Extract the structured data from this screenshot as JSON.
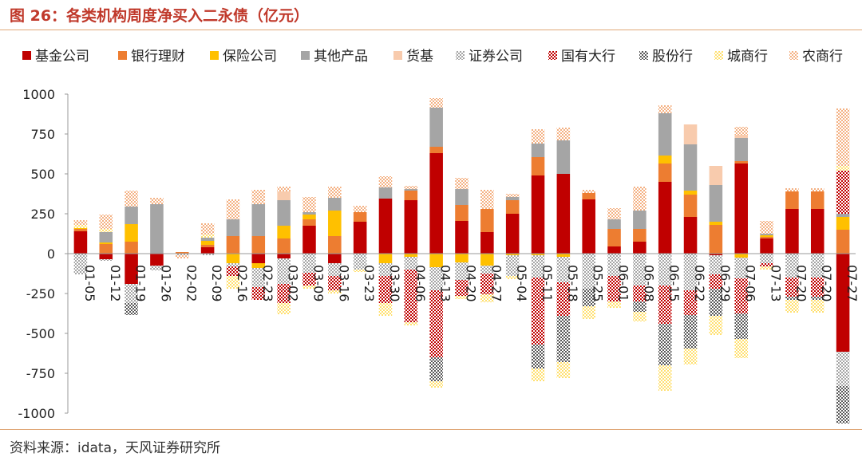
{
  "title": "图 26：各类机构周度净买入二永债（亿元）",
  "source": "资料来源：idata，天风证券研究所",
  "chart_data": {
    "type": "bar",
    "stacked": true,
    "title": "各类机构周度净买入二永债（亿元）",
    "xlabel": "",
    "ylabel": "",
    "ylim": [
      -1000,
      1000
    ],
    "yticks": [
      1000,
      750,
      500,
      250,
      0,
      -250,
      -500,
      -750,
      -1000
    ],
    "legend_position": "top",
    "grid": false,
    "categories": [
      "01-05",
      "01-12",
      "01-19",
      "01-26",
      "02-02",
      "02-09",
      "02-16",
      "02-23",
      "03-02",
      "03-09",
      "03-16",
      "03-23",
      "03-30",
      "04-06",
      "04-13",
      "04-20",
      "04-27",
      "05-04",
      "05-11",
      "05-18",
      "05-25",
      "06-01",
      "06-08",
      "06-15",
      "06-22",
      "06-29",
      "07-06",
      "07-13",
      "07-20",
      "07-20",
      "07-27"
    ],
    "series": [
      {
        "name": "基金公司",
        "color": "#c00000",
        "pattern": "solid",
        "values": [
          140,
          -35,
          -190,
          -75,
          0,
          40,
          0,
          -60,
          -30,
          175,
          -60,
          200,
          345,
          335,
          630,
          205,
          135,
          250,
          490,
          500,
          340,
          45,
          75,
          450,
          230,
          -10,
          565,
          95,
          280,
          280,
          -615
        ]
      },
      {
        "name": "银行理财",
        "color": "#ed7d31",
        "pattern": "solid",
        "values": [
          15,
          60,
          75,
          0,
          10,
          15,
          110,
          110,
          95,
          40,
          110,
          60,
          0,
          60,
          40,
          100,
          145,
          85,
          115,
          0,
          40,
          110,
          80,
          115,
          140,
          180,
          15,
          10,
          110,
          110,
          150
        ]
      },
      {
        "name": "保险公司",
        "color": "#ffc000",
        "pattern": "solid",
        "values": [
          5,
          10,
          110,
          0,
          0,
          25,
          -60,
          -30,
          80,
          30,
          160,
          0,
          -60,
          -20,
          -85,
          -55,
          -75,
          -10,
          -10,
          -20,
          0,
          0,
          0,
          50,
          25,
          20,
          -25,
          10,
          0,
          0,
          80
        ]
      },
      {
        "name": "其他产品",
        "color": "#a5a5a5",
        "pattern": "solid",
        "values": [
          0,
          65,
          110,
          310,
          0,
          20,
          105,
          200,
          160,
          15,
          80,
          0,
          70,
          10,
          245,
          100,
          0,
          20,
          85,
          210,
          0,
          60,
          115,
          265,
          290,
          230,
          145,
          10,
          0,
          0,
          20
        ]
      },
      {
        "name": "货基",
        "color": "#f8cbad",
        "pattern": "solid",
        "values": [
          0,
          0,
          0,
          0,
          0,
          0,
          0,
          0,
          55,
          0,
          0,
          0,
          0,
          0,
          0,
          0,
          0,
          0,
          0,
          0,
          0,
          0,
          0,
          0,
          125,
          120,
          20,
          0,
          0,
          0,
          0
        ]
      },
      {
        "name": "证券公司",
        "color": "#a5a5a5",
        "pattern": "check",
        "values": [
          -130,
          -10,
          -120,
          -30,
          -10,
          -10,
          -20,
          -120,
          -160,
          -120,
          -80,
          -100,
          -80,
          -80,
          -145,
          -110,
          -50,
          -130,
          -140,
          -160,
          -220,
          -140,
          -200,
          -200,
          -230,
          -120,
          -130,
          -60,
          -150,
          -150,
          -215
        ]
      },
      {
        "name": "国有大行",
        "color": "#c00000",
        "pattern": "check",
        "values": [
          0,
          0,
          0,
          0,
          0,
          0,
          -60,
          -80,
          -120,
          -80,
          -90,
          0,
          -170,
          -330,
          -420,
          -100,
          -130,
          0,
          -420,
          -210,
          0,
          -160,
          -100,
          -240,
          -155,
          -90,
          -220,
          -20,
          -120,
          -120,
          270
        ]
      },
      {
        "name": "股份行",
        "color": "#595959",
        "pattern": "check",
        "values": [
          0,
          0,
          -75,
          0,
          0,
          0,
          0,
          0,
          0,
          0,
          0,
          0,
          0,
          0,
          -150,
          0,
          0,
          0,
          -150,
          -290,
          -110,
          0,
          -65,
          -260,
          -210,
          -170,
          -160,
          0,
          -20,
          -20,
          -235
        ]
      },
      {
        "name": "城商行",
        "color": "#ffe070",
        "pattern": "check",
        "values": [
          20,
          20,
          0,
          0,
          0,
          20,
          -80,
          0,
          -70,
          -20,
          -20,
          -15,
          -80,
          -20,
          -40,
          -20,
          -50,
          -20,
          -80,
          -100,
          -80,
          -40,
          -60,
          -160,
          -100,
          -120,
          -120,
          -20,
          -80,
          -80,
          30
        ]
      },
      {
        "name": "农商行",
        "color": "#f4b183",
        "pattern": "check",
        "values": [
          30,
          90,
          100,
          40,
          -20,
          70,
          125,
          90,
          30,
          95,
          70,
          40,
          70,
          20,
          60,
          70,
          120,
          20,
          90,
          80,
          20,
          70,
          150,
          50,
          0,
          0,
          50,
          80,
          20,
          20,
          360
        ]
      }
    ]
  }
}
